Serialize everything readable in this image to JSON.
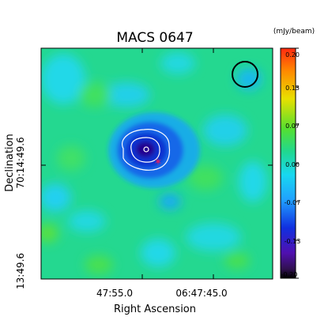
{
  "chart_data": {
    "type": "heatmap",
    "title": "MACS 0647",
    "xlabel": "Right Ascension",
    "ylabel": "Declination",
    "x_ticks": [
      "47:55.0",
      "06:47:45.0"
    ],
    "y_ticks": [
      "13:49.6",
      "70:14:49.6"
    ],
    "colorbar": {
      "unit_label": "(mJy/beam)",
      "ticks": [
        "0.20",
        "0.13",
        "0.07",
        "0.00",
        "-0.07",
        "-0.13",
        "-0.20"
      ],
      "range": [
        -0.2,
        0.2
      ],
      "colormap": "rainbow (black-purple-blue-cyan-green-yellow-orange-red-white)"
    },
    "features": {
      "decrement_peak_mjy_per_beam": -0.15,
      "contour_levels": 3,
      "beam_marker": "black circle, top-right",
      "marker": "magenta star near decrement center"
    }
  },
  "colors": {
    "background_field": "#24d890",
    "contour": "#ffffff",
    "beam": "#000000",
    "star": "#d0206a"
  }
}
